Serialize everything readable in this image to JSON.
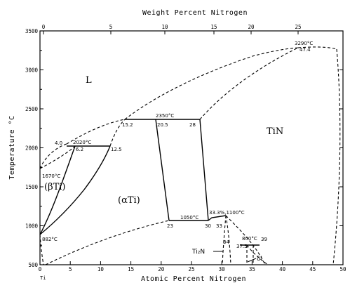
{
  "chart_data": {
    "type": "phase-diagram",
    "top_axis": {
      "label": "Weight Percent Nitrogen",
      "ticks": [
        "0",
        "5",
        "10",
        "15",
        "20",
        "25"
      ]
    },
    "bottom_axis": {
      "label": "Atomic Percent Nitrogen",
      "ticks": [
        "0",
        "5",
        "10",
        "15",
        "20",
        "25",
        "30",
        "35",
        "40",
        "45",
        "50"
      ],
      "xlim": [
        0,
        50
      ]
    },
    "left_axis": {
      "label": "Temperature °C",
      "ticks": [
        "500",
        "1000",
        "1500",
        "2000",
        "2500",
        "3000",
        "3500"
      ],
      "ylim": [
        500,
        3500
      ]
    },
    "element_label": "Ti",
    "phases": {
      "liquid": "L",
      "beta_ti": "(βTi)",
      "alpha_ti": "(αTi)",
      "tin": "TiN",
      "ti2n": "Ti₂N",
      "delta_prime": "δ'"
    },
    "annotations": {
      "t_3290": "3290°C",
      "c_47_4": "47.4",
      "t_2350": "2350°C",
      "c_15_2": "15.2",
      "c_20_5": "20.5",
      "c_28": "28",
      "t_2020": "2020°C",
      "c_4_0": "4.0",
      "c_6_2": "6.2",
      "c_12_5": "12.5",
      "t_1670": "1670°C",
      "t_882": "882°C",
      "t_1050": "1050°C",
      "c_23": "23",
      "c_30": "30",
      "c_33_3_t_1100": "33.3%,1100°C",
      "c_33": "33",
      "c_34": "34",
      "t_800": "800°C",
      "c_37_5": "37.5",
      "c_39": "39"
    }
  }
}
